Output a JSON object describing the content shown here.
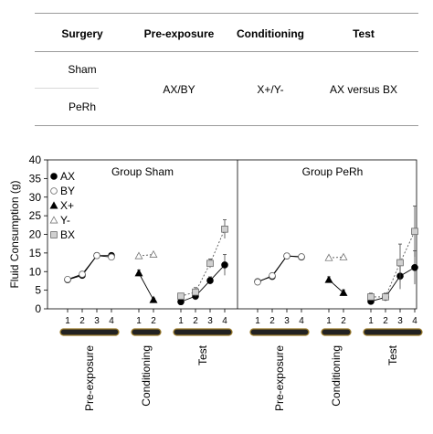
{
  "design_table": {
    "headers": [
      "Surgery",
      "Pre-exposure",
      "Conditioning",
      "Test"
    ],
    "groups": [
      "Sham",
      "PeRh"
    ],
    "pre_exposure": "AX/BY",
    "conditioning": "X+/Y-",
    "test": "AX versus BX"
  },
  "chart_data": {
    "type": "line",
    "ylabel": "Fluid Consumption (g)",
    "ylim": [
      0,
      40
    ],
    "yticks": [
      0,
      5,
      10,
      15,
      20,
      25,
      30,
      35,
      40
    ],
    "legend": [
      {
        "key": "AX",
        "label": "AX",
        "marker": "circle",
        "fill": "#000000"
      },
      {
        "key": "BY",
        "label": "BY",
        "marker": "circle",
        "fill": "#ffffff"
      },
      {
        "key": "Xplus",
        "label": "X+",
        "marker": "triangle",
        "fill": "#000000"
      },
      {
        "key": "Yminus",
        "label": "Y-",
        "marker": "triangle",
        "fill": "#ffffff"
      },
      {
        "key": "BX",
        "label": "BX",
        "marker": "square",
        "fill": "#d0d0d0"
      }
    ],
    "legend_position": "top-left",
    "stage_labels": [
      "Pre-exposure",
      "Conditioning",
      "Test"
    ],
    "panels": [
      {
        "title": "Group Sham",
        "stages": [
          {
            "name": "Pre-exposure",
            "days": [
              1,
              2,
              3,
              4
            ],
            "series": [
              {
                "key": "AX",
                "values": [
                  7.8,
                  9.0,
                  14.3,
                  14.3
                ],
                "err": [
                  0.4,
                  0.5,
                  0.5,
                  0.5
                ],
                "line": "solid"
              },
              {
                "key": "BY",
                "values": [
                  7.9,
                  9.3,
                  14.3,
                  13.9
                ],
                "err": [
                  0.4,
                  0.5,
                  0.5,
                  0.5
                ],
                "line": "solid"
              }
            ]
          },
          {
            "name": "Conditioning",
            "days": [
              1,
              2
            ],
            "series": [
              {
                "key": "Xplus",
                "values": [
                  9.6,
                  2.4
                ],
                "err": [
                  0.8,
                  0.5
                ],
                "line": "solid"
              },
              {
                "key": "Yminus",
                "values": [
                  14.2,
                  14.6
                ],
                "err": [
                  0.3,
                  0.3
                ],
                "line": "dotted"
              }
            ]
          },
          {
            "name": "Test",
            "days": [
              1,
              2,
              3,
              4
            ],
            "series": [
              {
                "key": "AX",
                "values": [
                  1.9,
                  3.4,
                  7.6,
                  11.8
                ],
                "err": [
                  0.5,
                  1.0,
                  1.0,
                  2.8
                ],
                "line": "solid"
              },
              {
                "key": "BX",
                "values": [
                  3.4,
                  4.5,
                  12.2,
                  21.4
                ],
                "err": [
                  0.7,
                  1.2,
                  1.2,
                  2.5
                ],
                "line": "dotted"
              }
            ]
          }
        ]
      },
      {
        "title": "Group PeRh",
        "stages": [
          {
            "name": "Pre-exposure",
            "days": [
              1,
              2,
              3,
              4
            ],
            "series": [
              {
                "key": "AX",
                "values": [
                  7.3,
                  8.7,
                  14.2,
                  13.9
                ],
                "err": [
                  0.4,
                  0.5,
                  0.5,
                  0.5
                ],
                "line": "solid"
              },
              {
                "key": "BY",
                "values": [
                  7.2,
                  8.9,
                  14.2,
                  14.0
                ],
                "err": [
                  0.5,
                  0.5,
                  0.5,
                  0.5
                ],
                "line": "solid"
              }
            ]
          },
          {
            "name": "Conditioning",
            "days": [
              1,
              2
            ],
            "series": [
              {
                "key": "Xplus",
                "values": [
                  7.8,
                  4.3
                ],
                "err": [
                  0.8,
                  0.8
                ],
                "line": "solid"
              },
              {
                "key": "Yminus",
                "values": [
                  13.7,
                  13.9
                ],
                "err": [
                  0.3,
                  0.3
                ],
                "line": "dotted"
              }
            ]
          },
          {
            "name": "Test",
            "days": [
              1,
              2,
              3,
              4
            ],
            "series": [
              {
                "key": "AX",
                "values": [
                  2.0,
                  3.1,
                  8.8,
                  11.1
                ],
                "err": [
                  0.8,
                  1.0,
                  3.5,
                  4.5
                ],
                "line": "solid"
              },
              {
                "key": "BX",
                "values": [
                  3.2,
                  3.2,
                  12.4,
                  20.8
                ],
                "err": [
                  1.0,
                  1.0,
                  5.0,
                  6.8
                ],
                "line": "dotted"
              }
            ]
          }
        ]
      }
    ]
  }
}
